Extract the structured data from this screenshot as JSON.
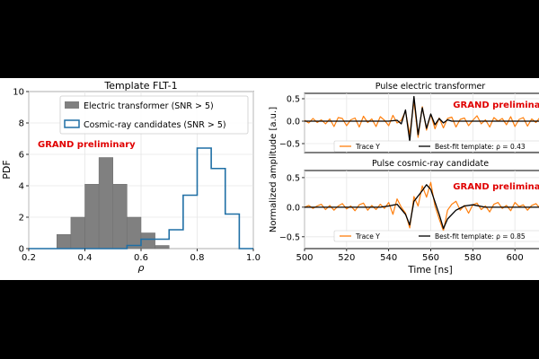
{
  "chart_data": [
    {
      "type": "histogram",
      "title": "Template FLT-1",
      "xlabel": "ρ",
      "ylabel": "PDF",
      "xlim": [
        0.2,
        1.0
      ],
      "ylim": [
        0,
        10
      ],
      "xticks": [
        "0.2",
        "0.4",
        "0.6",
        "0.8",
        "1.0"
      ],
      "yticks": [
        "0",
        "2",
        "4",
        "6",
        "8",
        "10"
      ],
      "annotation": "GRAND preliminary",
      "legend_position": "top-right",
      "series": [
        {
          "name": "Electric transformer (SNR > 5)",
          "style": "filled",
          "color": "#808080",
          "bins": [
            {
              "x0": 0.3,
              "x1": 0.35,
              "y": 0.9
            },
            {
              "x0": 0.35,
              "x1": 0.4,
              "y": 2.0
            },
            {
              "x0": 0.4,
              "x1": 0.45,
              "y": 4.1
            },
            {
              "x0": 0.45,
              "x1": 0.5,
              "y": 5.8
            },
            {
              "x0": 0.5,
              "x1": 0.55,
              "y": 4.1
            },
            {
              "x0": 0.55,
              "x1": 0.6,
              "y": 2.0
            },
            {
              "x0": 0.6,
              "x1": 0.65,
              "y": 1.0
            },
            {
              "x0": 0.65,
              "x1": 0.7,
              "y": 0.2
            }
          ]
        },
        {
          "name": "Cosmic-ray candidates (SNR > 5)",
          "style": "step",
          "color": "#1f6fa5",
          "edges": [
            0.2,
            0.55,
            0.6,
            0.65,
            0.7,
            0.75,
            0.8,
            0.85,
            0.9,
            0.95,
            1.0
          ],
          "values": [
            0,
            0.2,
            0.6,
            0.6,
            1.2,
            3.4,
            6.4,
            5.1,
            2.2,
            0
          ]
        }
      ]
    },
    {
      "type": "line",
      "title": "Pulse electric transformer",
      "xlim": [
        500,
        620
      ],
      "ylim": [
        -0.7,
        0.62
      ],
      "yticks": [
        "−0.5",
        "0.0",
        "0.5"
      ],
      "annotation": "GRAND preliminary",
      "series": [
        {
          "name": "Trace Y",
          "color": "#ff7f0e",
          "x": [
            500,
            502,
            504,
            506,
            508,
            510,
            512,
            514,
            516,
            518,
            520,
            522,
            524,
            526,
            528,
            530,
            532,
            534,
            536,
            538,
            540,
            542,
            544,
            546,
            548,
            550,
            552,
            554,
            556,
            558,
            560,
            562,
            564,
            566,
            568,
            570,
            572,
            574,
            576,
            578,
            580,
            582,
            584,
            586,
            588,
            590,
            592,
            594,
            596,
            598,
            600,
            602,
            604,
            606,
            608,
            610,
            612,
            614,
            616,
            618,
            620
          ],
          "y": [
            0.02,
            -0.04,
            0.06,
            -0.03,
            0.03,
            -0.06,
            0.05,
            -0.12,
            0.08,
            0.06,
            -0.1,
            0.03,
            0.07,
            -0.13,
            0.11,
            -0.03,
            0.05,
            -0.12,
            0.1,
            0.02,
            -0.1,
            0.13,
            -0.04,
            0.02,
            0.22,
            -0.3,
            0.45,
            -0.36,
            0.32,
            -0.2,
            0.15,
            -0.17,
            0.07,
            -0.15,
            0.06,
            0.09,
            -0.13,
            0.04,
            0.07,
            -0.1,
            0.02,
            0.12,
            -0.06,
            0.03,
            -0.13,
            0.08,
            0.0,
            0.06,
            -0.08,
            0.1,
            -0.12,
            0.04,
            0.08,
            -0.11,
            0.05,
            -0.03,
            0.09,
            -0.1,
            0.03,
            0.06,
            -0.02
          ]
        },
        {
          "name": "Best-fit template: ρ = 0.43",
          "color": "#000000",
          "x": [
            500,
            540,
            544,
            546,
            548,
            550,
            552,
            554,
            556,
            558,
            560,
            562,
            564,
            566,
            568,
            570,
            574,
            580,
            620
          ],
          "y": [
            0,
            0,
            0.02,
            -0.06,
            0.25,
            -0.45,
            0.55,
            -0.3,
            0.3,
            -0.16,
            0.16,
            -0.08,
            0.06,
            -0.04,
            0.03,
            0,
            0,
            0,
            0
          ]
        }
      ]
    },
    {
      "type": "line",
      "title": "Pulse cosmic-ray candidate",
      "xlim": [
        500,
        620
      ],
      "ylim": [
        -0.7,
        0.62
      ],
      "yticks": [
        "−0.5",
        "0.0",
        "0.5"
      ],
      "xticks": [
        "500",
        "520",
        "540",
        "560",
        "580",
        "600",
        "620"
      ],
      "xlabel": "Time [ns]",
      "shared_ylabel": "Normalized amplitude [a.u.]",
      "annotation": "GRAND preliminary",
      "series": [
        {
          "name": "Trace Y",
          "color": "#ff7f0e",
          "x": [
            500,
            502,
            504,
            506,
            508,
            510,
            512,
            514,
            516,
            518,
            520,
            522,
            524,
            526,
            528,
            530,
            532,
            534,
            536,
            538,
            540,
            542,
            544,
            546,
            548,
            550,
            552,
            554,
            556,
            558,
            560,
            562,
            564,
            566,
            568,
            570,
            572,
            574,
            576,
            578,
            580,
            582,
            584,
            586,
            588,
            590,
            592,
            594,
            596,
            598,
            600,
            602,
            604,
            606,
            608,
            610,
            612,
            614,
            616,
            618,
            620
          ],
          "y": [
            0.0,
            0.03,
            -0.02,
            0.02,
            0.05,
            -0.04,
            0.03,
            -0.05,
            0.02,
            0.06,
            -0.03,
            0.02,
            -0.06,
            0.04,
            0.07,
            -0.05,
            0.03,
            -0.04,
            0.05,
            -0.02,
            0.08,
            -0.12,
            0.14,
            0.0,
            -0.1,
            -0.35,
            0.18,
            0.02,
            0.36,
            0.17,
            0.42,
            0.02,
            -0.2,
            -0.4,
            -0.05,
            0.05,
            0.1,
            -0.05,
            0.03,
            -0.1,
            0.04,
            0.07,
            -0.04,
            0.02,
            -0.08,
            0.05,
            0.08,
            -0.02,
            0.03,
            -0.06,
            0.08,
            0.01,
            0.04,
            -0.05,
            0.03,
            0.06,
            -0.02,
            0.04,
            0.02,
            -0.03,
            0.0
          ]
        },
        {
          "name": "Best-fit template: ρ = 0.85",
          "color": "#000000",
          "x": [
            500,
            536,
            540,
            544,
            548,
            550,
            552,
            556,
            558,
            560,
            564,
            566,
            568,
            572,
            576,
            580,
            586,
            620
          ],
          "y": [
            0,
            0,
            0.02,
            0.05,
            -0.12,
            -0.3,
            0.1,
            0.28,
            0.38,
            0.3,
            -0.12,
            -0.36,
            -0.2,
            -0.05,
            0.02,
            0.04,
            0,
            0
          ]
        }
      ]
    }
  ]
}
